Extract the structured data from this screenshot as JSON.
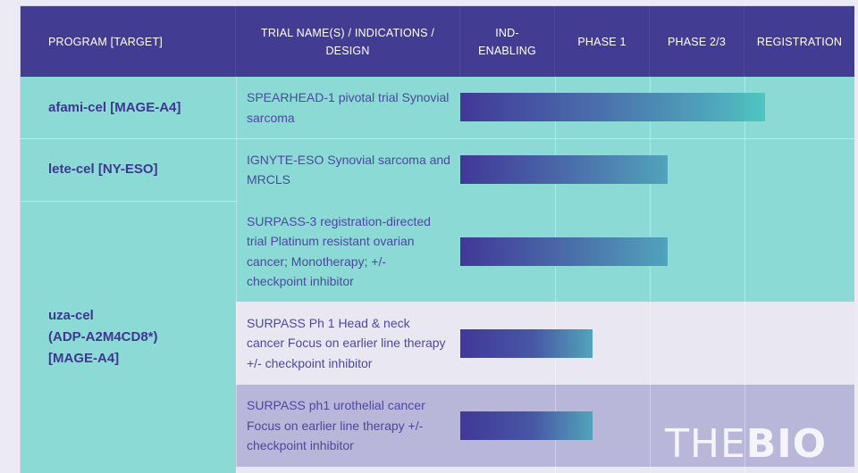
{
  "header": {
    "program": "PROGRAM [TARGET]",
    "trial": "TRIAL NAME(S) / INDICATIONS / DESIGN",
    "ind": "IND-ENABLING",
    "phase1": "PHASE 1",
    "phase23": "PHASE 2/3",
    "registration": "REGISTRATION"
  },
  "programs": {
    "afami": "afami-cel [MAGE-A4]",
    "lete": "lete-cel [NY-ESO]",
    "uza_line1": "uza-cel",
    "uza_line2": "(ADP-A2M4CD8*)",
    "uza_line3": "[MAGE-A4]"
  },
  "trials": {
    "spearhead": "SPEARHEAD-1 pivotal trial Synovial sarcoma",
    "ignyte": "IGNYTE-ESO Synovial sarcoma and MRCLS",
    "surpass3": "SURPASS-3 registration-directed trial Platinum resistant ovarian cancer; Monotherapy; +/- checkpoint inhibitor",
    "surpass_hn": "SURPASS Ph 1 Head & neck cancer Focus on earlier line therapy +/- checkpoint inhibitor",
    "surpass_uro": "SURPASS ph1 urothelial cancer Focus on earlier line therapy +/- checkpoint inhibitor"
  },
  "stages": {
    "spearhead": "Registration",
    "ignyte": "Phase 2/3",
    "surpass3": "Phase 2/3",
    "surpass_hn": "Phase 1",
    "surpass_uro": "Phase 1"
  },
  "watermark": {
    "part1": "THE",
    "part2": "BIO"
  },
  "colors": {
    "header": "#433c93",
    "teal": "#8cdad6",
    "lavender": "#b8b6d9",
    "bar_start": "#3f3896",
    "bar_end_teal": "#4fc7c1",
    "text": "#3e3791"
  }
}
